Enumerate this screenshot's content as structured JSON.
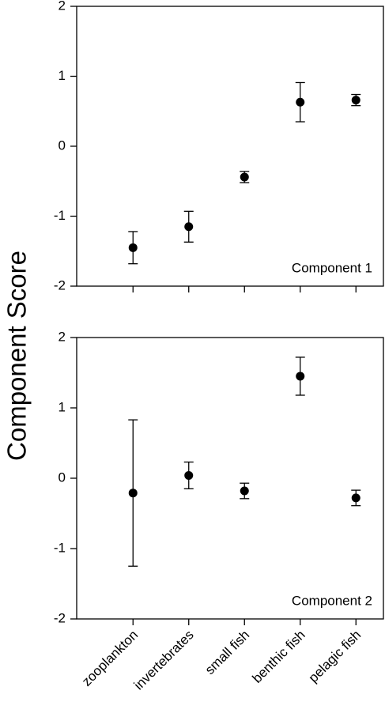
{
  "chart_data": [
    {
      "type": "errorbar",
      "ylabel": "Component Score",
      "annotation": "Component 1",
      "categories": [
        null,
        null,
        null,
        null,
        null
      ],
      "values": [
        -1.45,
        -1.15,
        -0.44,
        0.63,
        0.66
      ],
      "errors": [
        0.23,
        0.22,
        0.08,
        0.28,
        0.08
      ],
      "color": "#000000",
      "ylim": [
        -2,
        2
      ],
      "yticks": [
        -2,
        -1,
        0,
        1,
        2
      ],
      "grid": false
    },
    {
      "type": "errorbar",
      "annotation": "Component 2",
      "categories": [
        "zooplankton",
        "invertebrates",
        "small fish",
        "benthic fish",
        "pelagic fish"
      ],
      "values": [
        -0.21,
        0.04,
        -0.18,
        1.45,
        -0.28
      ],
      "errors": [
        1.04,
        0.19,
        0.11,
        0.27,
        0.11
      ],
      "color": "#000000",
      "ylim": [
        -2,
        2
      ],
      "yticks": [
        -2,
        -1,
        0,
        1,
        2
      ],
      "grid": false
    }
  ]
}
